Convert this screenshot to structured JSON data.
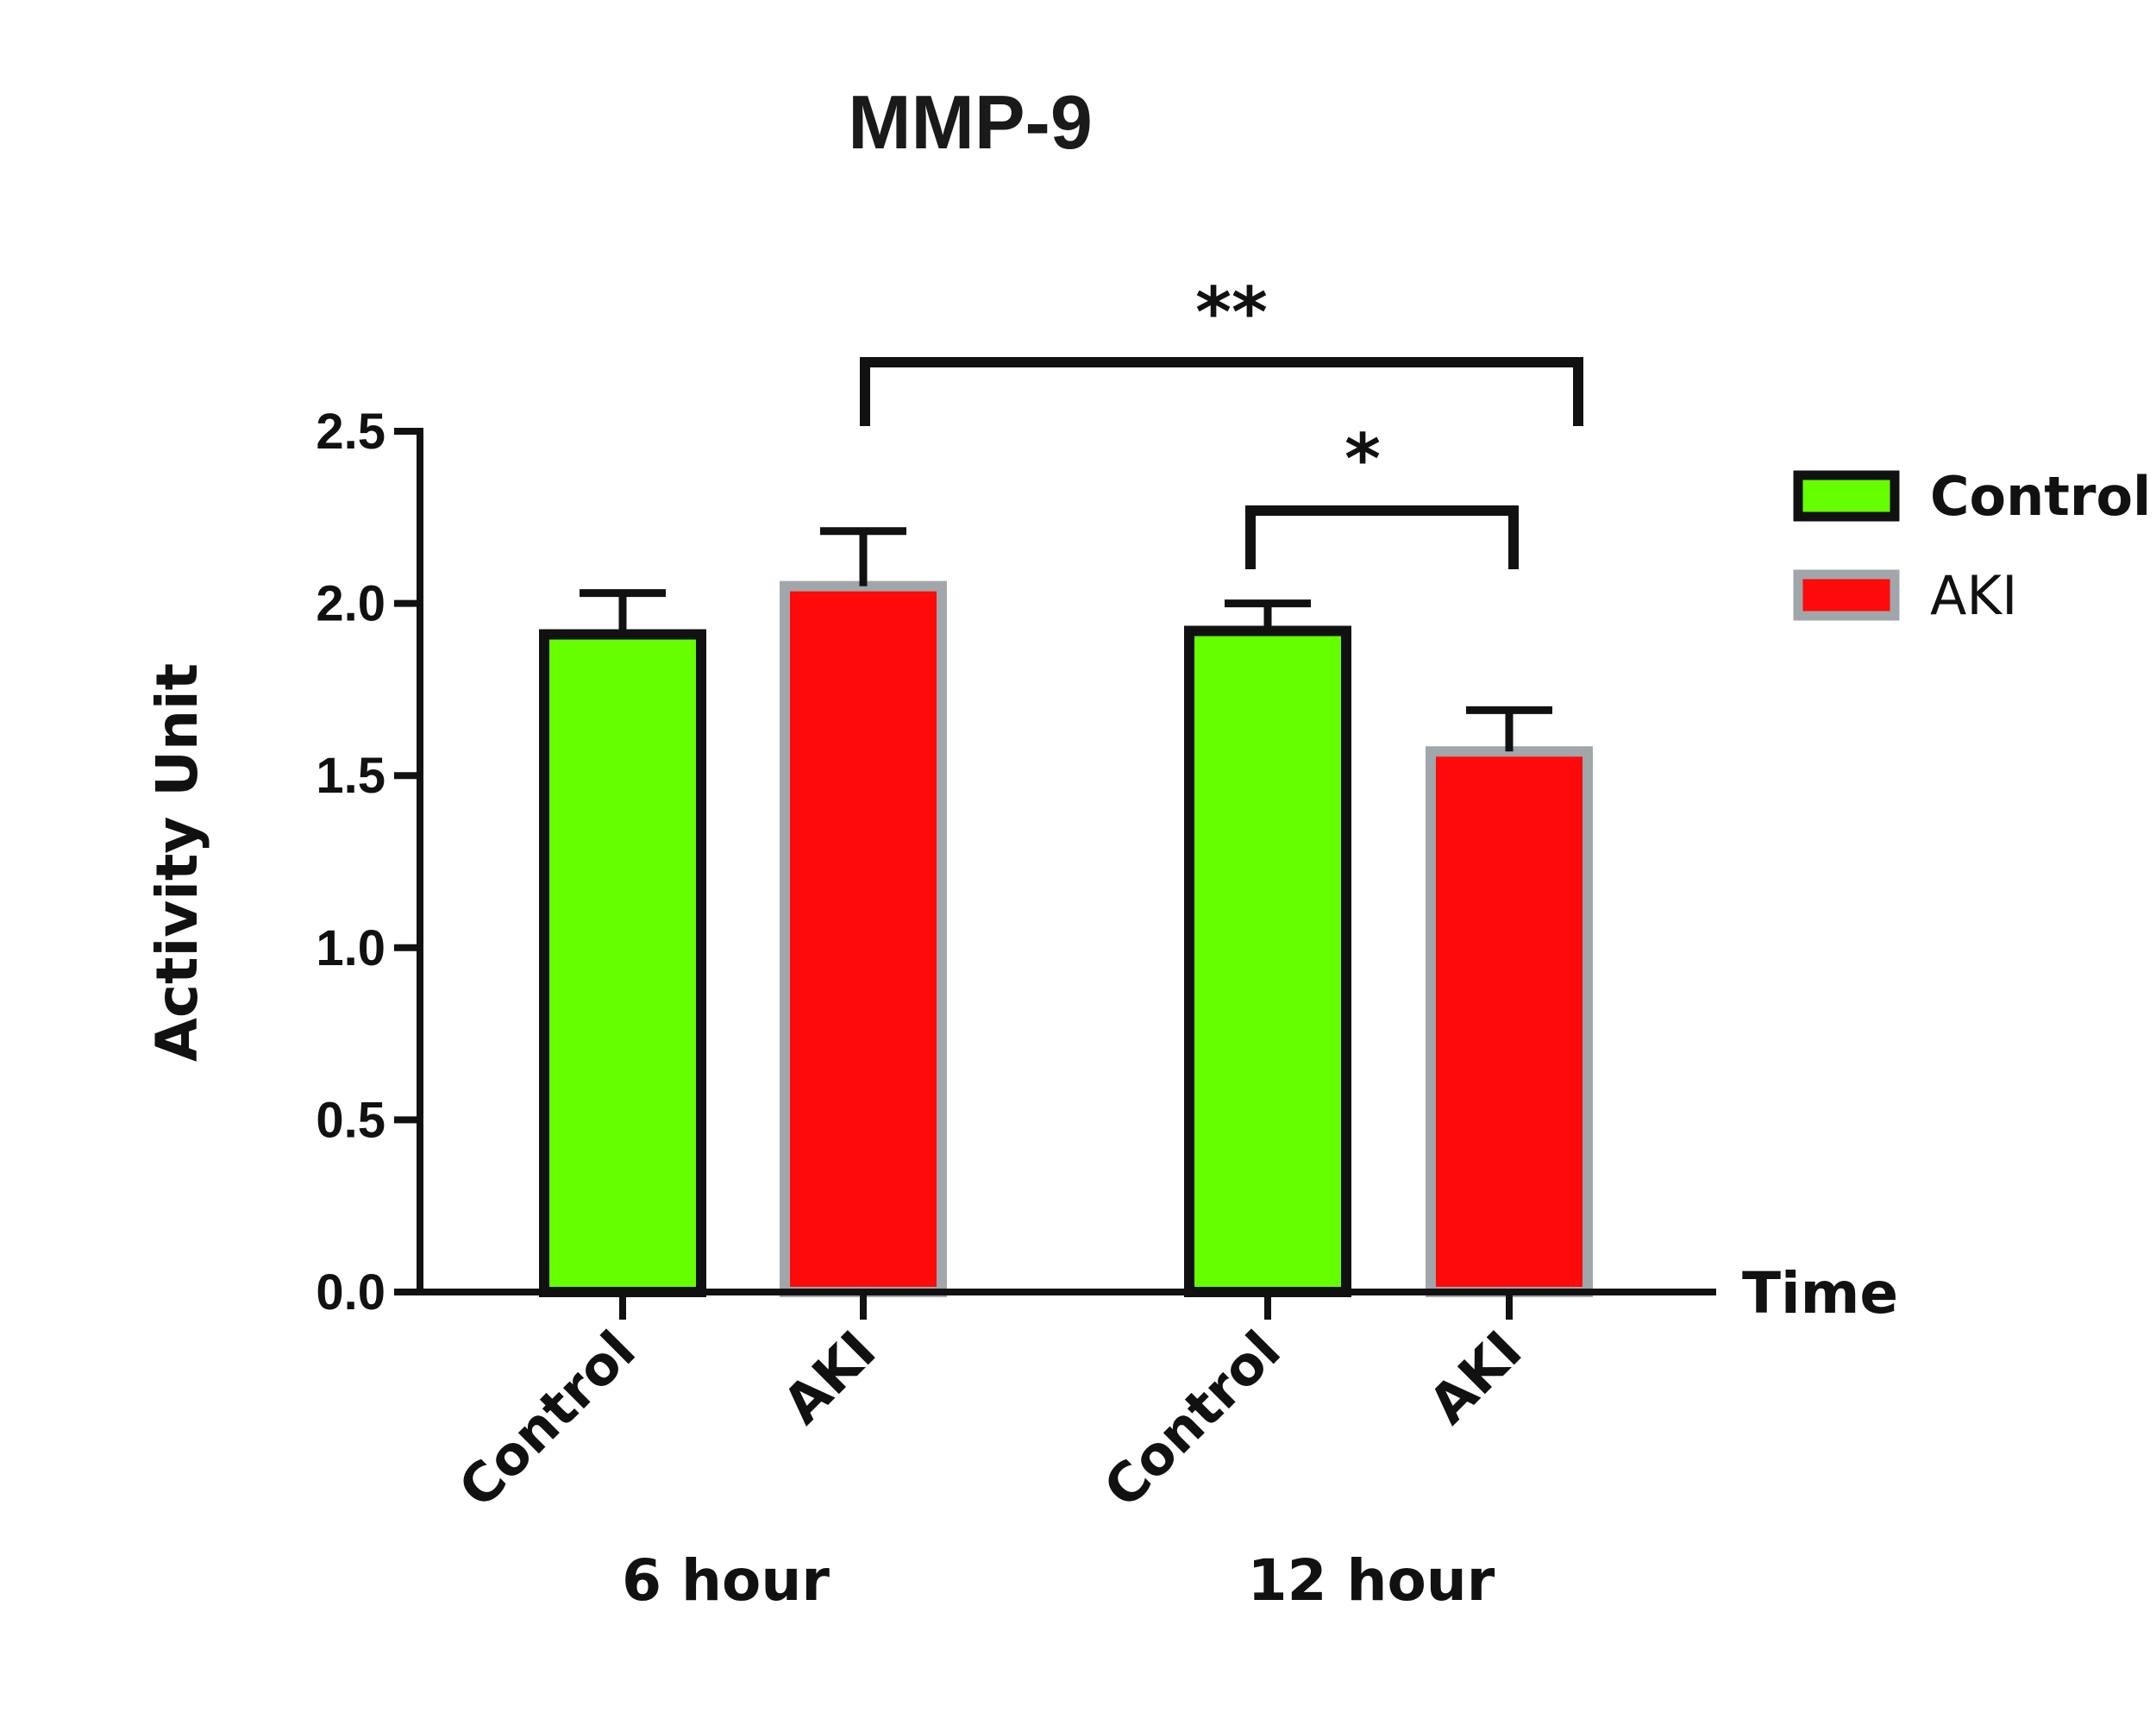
{
  "chart_data": {
    "type": "bar",
    "title": "MMP-9",
    "ylabel": "Activity Unit",
    "xlabel": "Time",
    "ylim": [
      0,
      2.5
    ],
    "yticks": [
      "0.0",
      "0.5",
      "1.0",
      "1.5",
      "2.0",
      "2.5"
    ],
    "ytick_values": [
      0,
      0.5,
      1.0,
      1.5,
      2.0,
      2.5
    ],
    "groups": [
      "6 hour",
      "12 hour"
    ],
    "categories": [
      "Control",
      "AKI"
    ],
    "series": [
      {
        "name": "Control",
        "values": [
          1.91,
          1.92
        ],
        "errors": [
          0.12,
          0.08
        ],
        "color": "#66ff00",
        "border": "#111111"
      },
      {
        "name": "AKI",
        "values": [
          2.05,
          1.57
        ],
        "errors": [
          0.16,
          0.12
        ],
        "color": "#ff0a0a",
        "border": "#a0a6aa"
      }
    ],
    "legend": {
      "placement": "right",
      "entries": [
        "Control",
        "AKI"
      ]
    },
    "significance": [
      {
        "label": "**",
        "from": "6 hour AKI",
        "to": "12 hour AKI"
      },
      {
        "label": "*",
        "from": "12 hour Control",
        "to": "12 hour AKI"
      }
    ]
  }
}
